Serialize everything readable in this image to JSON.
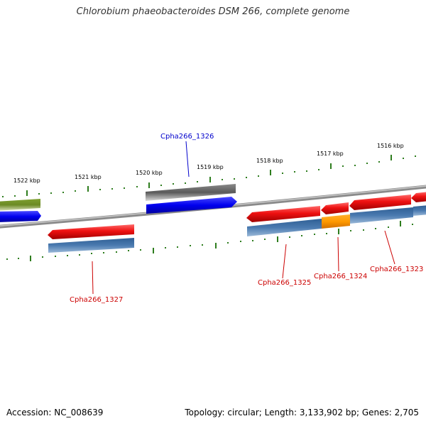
{
  "title": "Chlorobium phaeobacteroides DSM 266, complete genome",
  "footer": {
    "accession": "Accession: NC_008639",
    "topology": "Topology: circular; Length: 3,133,902 bp; Genes: 2,705"
  },
  "colors": {
    "backbone": "#8a8a8a",
    "tick": "#2e7d1e",
    "label_blue": "#0000cc",
    "label_red": "#cc0000",
    "gene_red": "#ee1111",
    "gene_blue": "#0000ee",
    "gene_steel": "#4a7ab0",
    "gene_grey": "#5a5a5a",
    "gene_olive": "#6b8a24",
    "gene_orange": "#ff9900"
  },
  "scale_labels": [
    "1522 kbp",
    "1521 kbp",
    "1520 kbp",
    "1519 kbp",
    "1518 kbp",
    "1517 kbp",
    "1516 kbp"
  ],
  "gene_labels": [
    "Cpha266_1326",
    "Cpha266_1327",
    "Cpha266_1325",
    "Cpha266_1324",
    "Cpha266_1323"
  ]
}
